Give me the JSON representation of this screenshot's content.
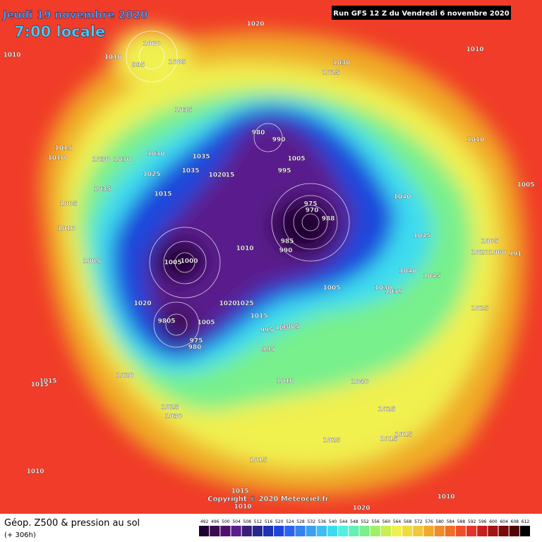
{
  "header": {
    "date": "Jeudi 19 novembre 2020",
    "time": "7:00 locale",
    "run": "Run GFS 12 Z du Vendredi 6 novembre 2020"
  },
  "copyright": "Copyright © 2020 Meteociel.fr",
  "footer": {
    "title": "Géop. Z500 & pression au sol",
    "lead": "(+ 306h)"
  },
  "isobar_labels": [
    "1020",
    "1010",
    "1010",
    "1000",
    "995",
    "1005",
    "1030",
    "1025",
    "1010",
    "1035",
    "980",
    "990",
    "1010",
    "1015",
    "1010",
    "1030",
    "1030",
    "1030",
    "1035",
    "1005",
    "995",
    "1025",
    "1035",
    "1020",
    "15",
    "1035",
    "1015",
    "1040",
    "1005",
    "975",
    "970",
    "988",
    "1005",
    "1010",
    "1045",
    "985",
    "990",
    "1010",
    "1005",
    "1020",
    "1000",
    "991",
    "1005",
    "1000",
    "1005",
    "1040",
    "1045",
    "1005",
    "1030",
    "1039",
    "1020",
    "1020",
    "1025",
    "1025",
    "1015",
    "995",
    "1000",
    "1005",
    "9805",
    "1005",
    "975",
    "980",
    "995",
    "1020",
    "1010",
    "1040",
    "1015",
    "1015",
    "1025",
    "1030",
    "1025",
    "1025",
    "1015",
    "1015",
    "1015",
    "1010",
    "1015",
    "1010",
    "1020",
    "1010"
  ],
  "legend": {
    "labels": [
      492,
      496,
      500,
      504,
      508,
      512,
      516,
      520,
      524,
      528,
      532,
      536,
      540,
      544,
      548,
      552,
      556,
      560,
      564,
      568,
      572,
      576,
      580,
      584,
      588,
      592,
      596,
      600,
      604,
      608,
      612
    ],
    "colors": [
      "#200030",
      "#3c0a50",
      "#500f6e",
      "#5a1e8c",
      "#3c1e78",
      "#28288c",
      "#1e32b4",
      "#1e46dc",
      "#2864f0",
      "#3282f0",
      "#3ca0f0",
      "#3cbef0",
      "#3cdcf0",
      "#50f0dc",
      "#64f0b4",
      "#78f08c",
      "#a0f064",
      "#c8f050",
      "#f0f050",
      "#f0dc3c",
      "#f0c83c",
      "#f0aa28",
      "#f08c28",
      "#f06e28",
      "#f05028",
      "#e63228",
      "#c81e1e",
      "#a01414",
      "#780a0a",
      "#500505",
      "#000000"
    ]
  }
}
